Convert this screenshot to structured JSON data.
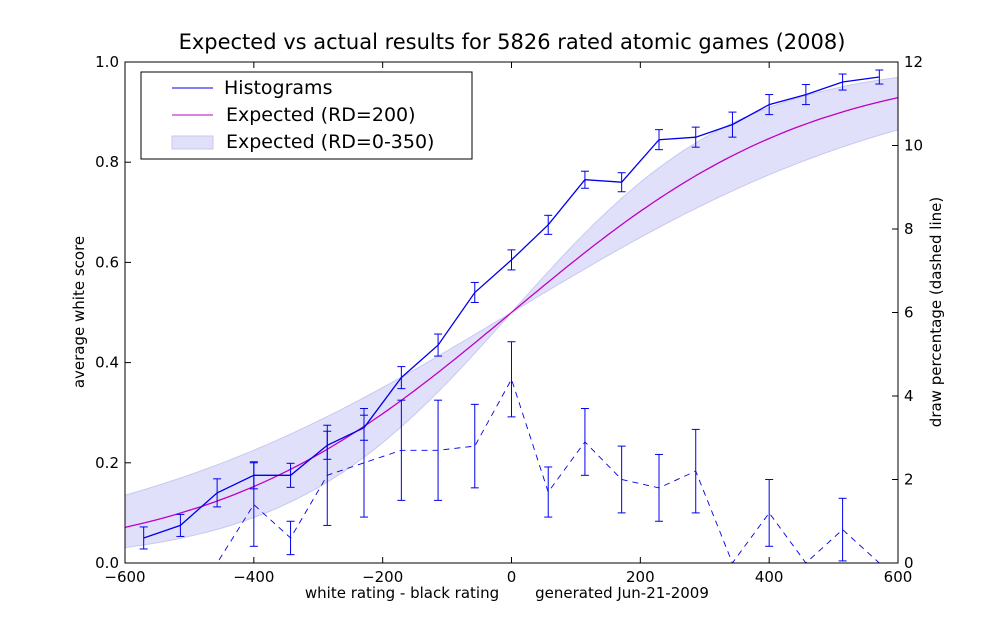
{
  "chart_data": {
    "type": "line",
    "title": "Expected vs actual results for 5826 rated atomic games (2008)",
    "xlabel": "white rating - black rating",
    "footnote": "generated Jun-21-2009",
    "ylabel_left": "average white score",
    "ylabel_right": "draw percentage (dashed line)",
    "xlim": [
      -600,
      600
    ],
    "ylim_left": [
      0.0,
      1.0
    ],
    "ylim_right": [
      0,
      12
    ],
    "x_ticks": [
      "−600",
      "−400",
      "−200",
      "0",
      "200",
      "400",
      "600"
    ],
    "y_left_ticks": [
      "0.0",
      "0.2",
      "0.4",
      "0.6",
      "0.8",
      "1.0"
    ],
    "y_right_ticks": [
      "0",
      "2",
      "4",
      "6",
      "8",
      "10",
      "12"
    ],
    "legend": {
      "placement": "top-left",
      "entries": [
        "Histograms",
        "Expected (RD=200)",
        "Expected (RD=0-350)"
      ]
    },
    "colors": {
      "histogram": "#0000ee",
      "expected": "#c000c0",
      "band_fill": "#e0e0fa",
      "band_edge": "#c8c8f0"
    },
    "series": [
      {
        "name": "Histograms",
        "axis": "left",
        "x": [
          -571,
          -514,
          -457,
          -400,
          -343,
          -286,
          -229,
          -171,
          -114,
          -57,
          0,
          57,
          114,
          171,
          229,
          286,
          343,
          400,
          457,
          514,
          571
        ],
        "y": [
          0.05,
          0.075,
          0.14,
          0.175,
          0.175,
          0.235,
          0.27,
          0.37,
          0.435,
          0.54,
          0.605,
          0.675,
          0.765,
          0.76,
          0.845,
          0.85,
          0.875,
          0.915,
          0.935,
          0.96,
          0.97
        ],
        "err": [
          0.022,
          0.022,
          0.028,
          0.027,
          0.024,
          0.028,
          0.025,
          0.022,
          0.022,
          0.02,
          0.02,
          0.019,
          0.017,
          0.019,
          0.02,
          0.02,
          0.025,
          0.02,
          0.02,
          0.016,
          0.014
        ]
      },
      {
        "name": "draw percentage",
        "axis": "right",
        "x": [
          -571,
          -514,
          -457,
          -400,
          -343,
          -286,
          -229,
          -171,
          -114,
          -57,
          0,
          57,
          114,
          171,
          229,
          286,
          343,
          400,
          457,
          514,
          571
        ],
        "y": [
          0.0,
          0.0,
          0.0,
          1.4,
          0.6,
          2.1,
          2.4,
          2.7,
          2.7,
          2.8,
          4.4,
          1.7,
          2.9,
          2.0,
          1.8,
          2.2,
          0.0,
          1.2,
          0.0,
          0.8,
          0.0
        ],
        "err": [
          null,
          null,
          null,
          1.0,
          0.4,
          1.2,
          1.3,
          1.2,
          1.2,
          1.0,
          0.9,
          0.6,
          0.8,
          0.8,
          0.8,
          1.0,
          null,
          0.8,
          null,
          0.75,
          null
        ]
      }
    ]
  }
}
